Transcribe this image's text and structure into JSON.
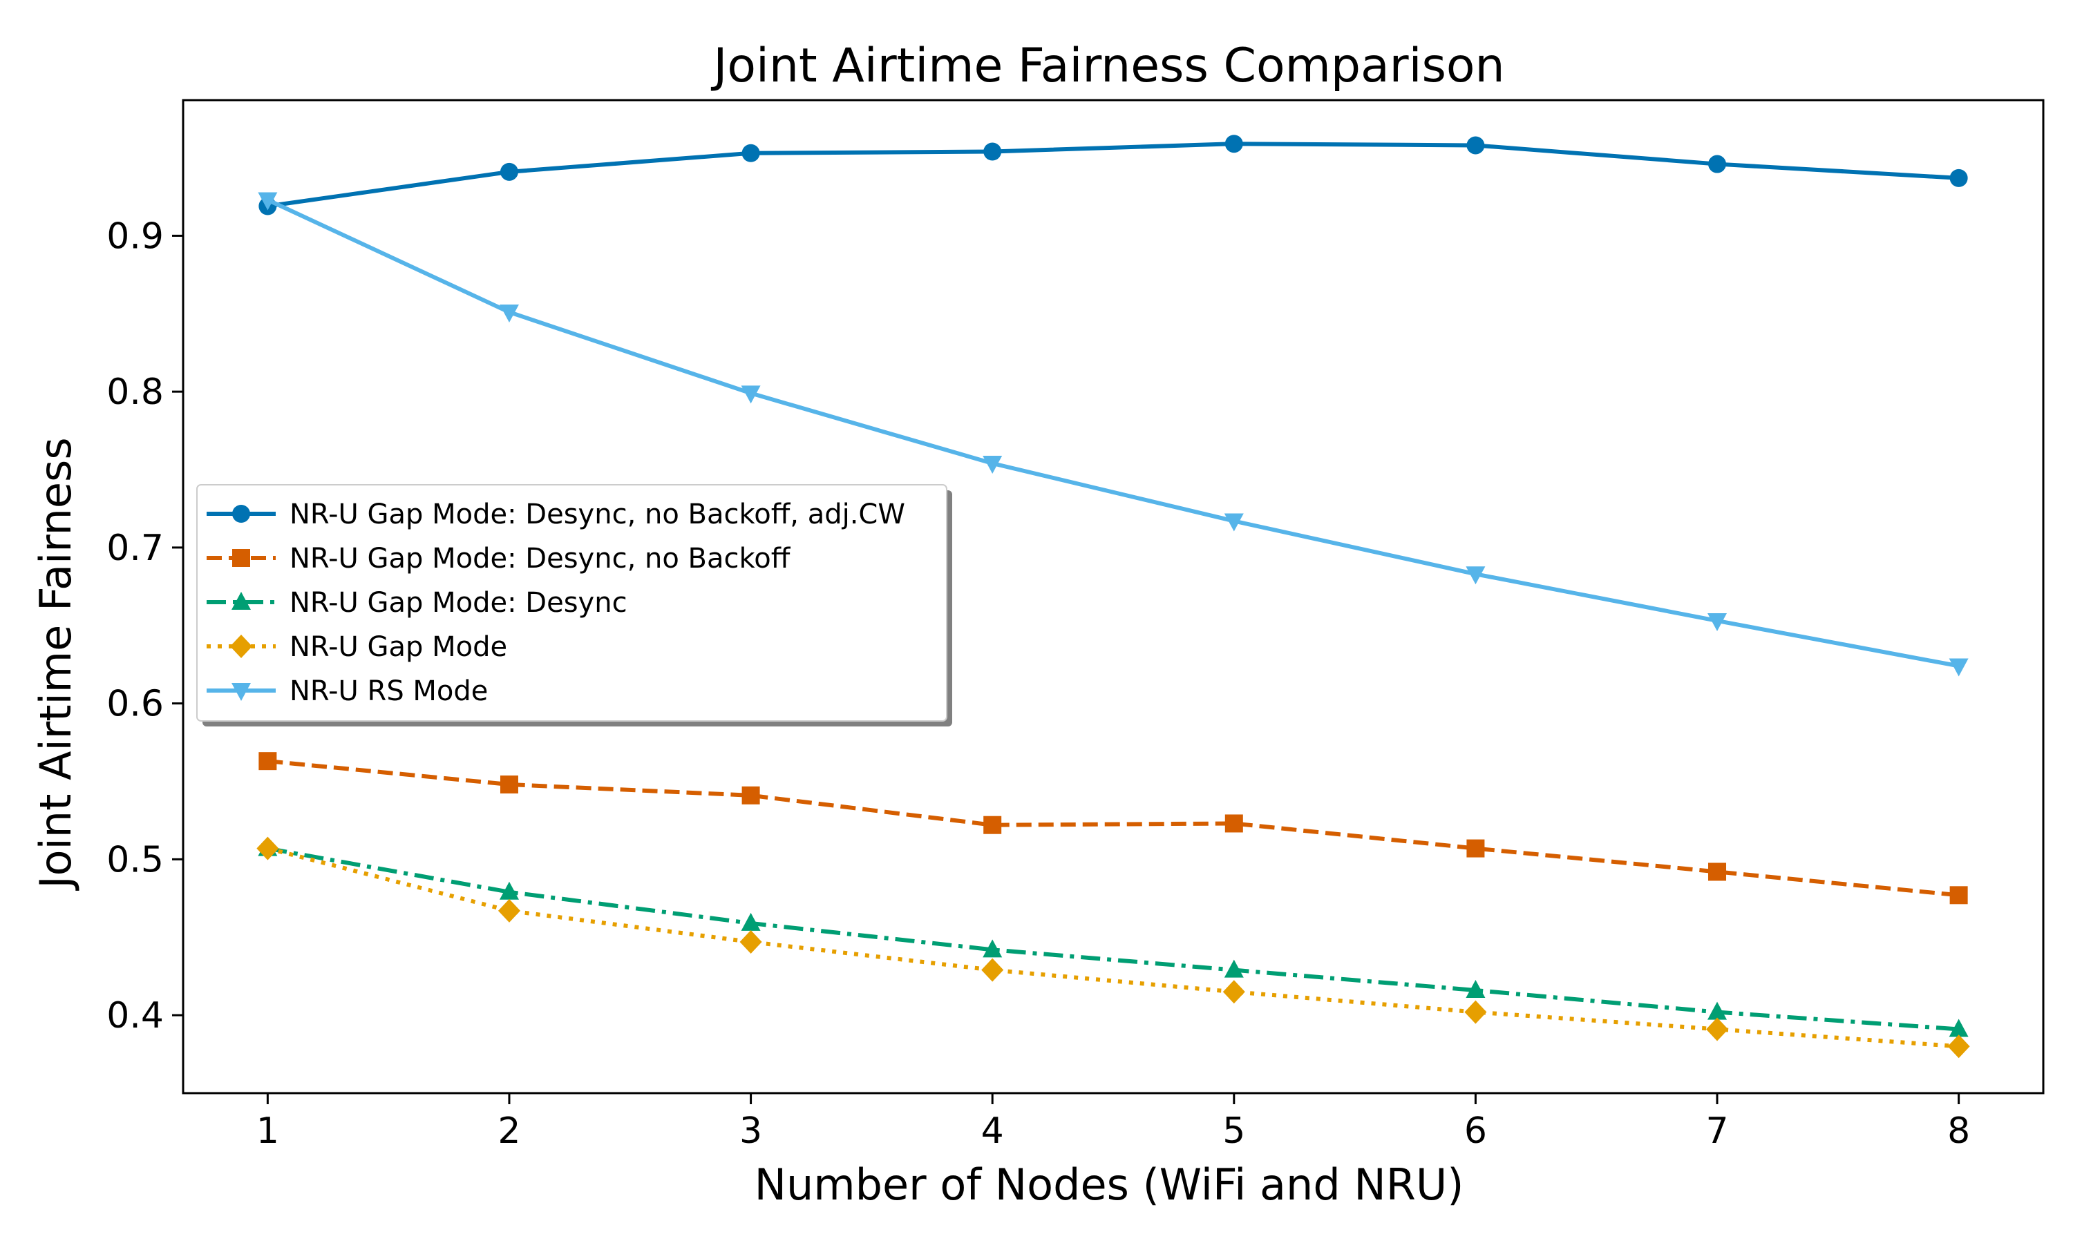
{
  "chart_data": {
    "type": "line",
    "title": "Joint Airtime Fairness Comparison",
    "xlabel": "Number of Nodes (WiFi and NRU)",
    "ylabel": "Joint Airtime Fairness",
    "x": [
      1,
      2,
      3,
      4,
      5,
      6,
      7,
      8
    ],
    "xticks": [
      "1",
      "2",
      "3",
      "4",
      "5",
      "6",
      "7",
      "8"
    ],
    "yticks": [
      "0.4",
      "0.5",
      "0.6",
      "0.7",
      "0.8",
      "0.9"
    ],
    "xlim": [
      0.65,
      8.35
    ],
    "ylim": [
      0.35,
      0.987
    ],
    "grid": false,
    "legend_position": "center-left",
    "series": [
      {
        "name": "NR-U Gap Mode: Desync, no Backoff, adj.CW",
        "values": [
          0.919,
          0.941,
          0.953,
          0.954,
          0.959,
          0.958,
          0.946,
          0.937
        ],
        "color": "#0072B2",
        "dash": "solid",
        "marker": "circle"
      },
      {
        "name": "NR-U Gap Mode: Desync, no Backoff",
        "values": [
          0.563,
          0.548,
          0.541,
          0.522,
          0.523,
          0.507,
          0.492,
          0.477
        ],
        "color": "#D55E00",
        "dash": "dashed",
        "marker": "square"
      },
      {
        "name": "NR-U Gap Mode: Desync",
        "values": [
          0.507,
          0.479,
          0.459,
          0.442,
          0.429,
          0.416,
          0.402,
          0.391
        ],
        "color": "#009E73",
        "dash": "dashdot",
        "marker": "triangle-up"
      },
      {
        "name": "NR-U Gap Mode",
        "values": [
          0.507,
          0.467,
          0.447,
          0.429,
          0.415,
          0.402,
          0.391,
          0.38
        ],
        "color": "#E69F00",
        "dash": "dotted",
        "marker": "diamond"
      },
      {
        "name": "NR-U RS Mode",
        "values": [
          0.923,
          0.851,
          0.799,
          0.754,
          0.717,
          0.683,
          0.653,
          0.624
        ],
        "color": "#56B4E9",
        "dash": "solid",
        "marker": "triangle-down"
      }
    ]
  }
}
